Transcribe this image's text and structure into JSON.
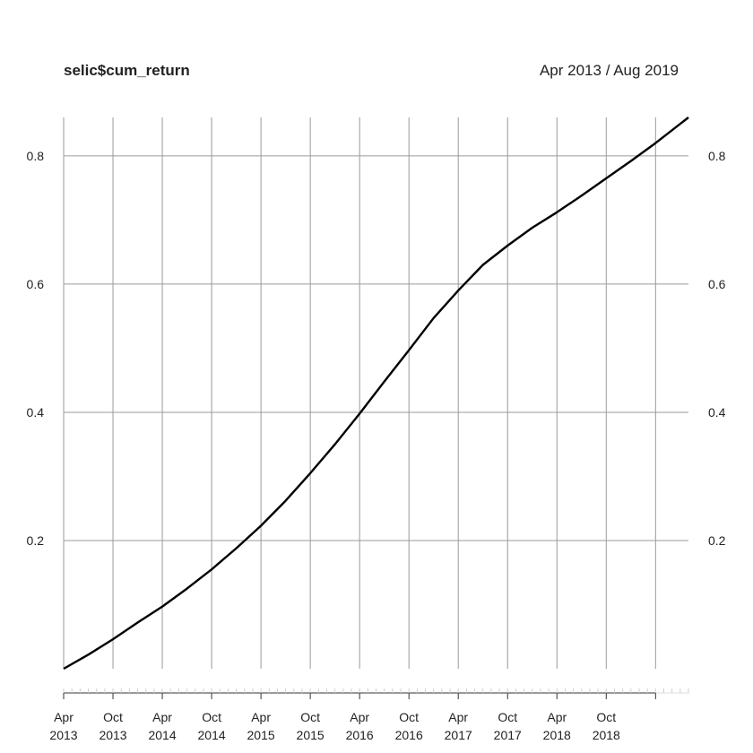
{
  "chart_data": {
    "type": "line",
    "title": "selic$cum_return",
    "date_range_label": "Apr 2013 / Aug 2019",
    "x_range": [
      "2013-04",
      "2019-08"
    ],
    "ylim": [
      0,
      0.86
    ],
    "y_ticks": [
      {
        "value": 0.2,
        "label": "0.2"
      },
      {
        "value": 0.4,
        "label": "0.4"
      },
      {
        "value": 0.6,
        "label": "0.6"
      },
      {
        "value": 0.8,
        "label": "0.8"
      }
    ],
    "x_ticks": [
      {
        "date": "2013-04",
        "month": "Apr",
        "year": "2013"
      },
      {
        "date": "2013-10",
        "month": "Oct",
        "year": "2013"
      },
      {
        "date": "2014-04",
        "month": "Apr",
        "year": "2014"
      },
      {
        "date": "2014-10",
        "month": "Oct",
        "year": "2014"
      },
      {
        "date": "2015-04",
        "month": "Apr",
        "year": "2015"
      },
      {
        "date": "2015-10",
        "month": "Oct",
        "year": "2015"
      },
      {
        "date": "2016-04",
        "month": "Apr",
        "year": "2016"
      },
      {
        "date": "2016-10",
        "month": "Oct",
        "year": "2016"
      },
      {
        "date": "2017-04",
        "month": "Apr",
        "year": "2017"
      },
      {
        "date": "2017-10",
        "month": "Oct",
        "year": "2017"
      },
      {
        "date": "2018-04",
        "month": "Apr",
        "year": "2018"
      },
      {
        "date": "2018-10",
        "month": "Oct",
        "year": "2018"
      }
    ],
    "grid": true,
    "series": [
      {
        "color": "#000000",
        "points": [
          {
            "x": "2013-04",
            "y": 0.0
          },
          {
            "x": "2013-07",
            "y": 0.022
          },
          {
            "x": "2013-10",
            "y": 0.046
          },
          {
            "x": "2014-01",
            "y": 0.072
          },
          {
            "x": "2014-04",
            "y": 0.097
          },
          {
            "x": "2014-07",
            "y": 0.125
          },
          {
            "x": "2014-10",
            "y": 0.155
          },
          {
            "x": "2015-01",
            "y": 0.188
          },
          {
            "x": "2015-04",
            "y": 0.223
          },
          {
            "x": "2015-07",
            "y": 0.262
          },
          {
            "x": "2015-10",
            "y": 0.305
          },
          {
            "x": "2016-01",
            "y": 0.35
          },
          {
            "x": "2016-04",
            "y": 0.398
          },
          {
            "x": "2016-07",
            "y": 0.448
          },
          {
            "x": "2016-10",
            "y": 0.497
          },
          {
            "x": "2017-01",
            "y": 0.547
          },
          {
            "x": "2017-04",
            "y": 0.59
          },
          {
            "x": "2017-07",
            "y": 0.63
          },
          {
            "x": "2017-10",
            "y": 0.66
          },
          {
            "x": "2018-01",
            "y": 0.688
          },
          {
            "x": "2018-04",
            "y": 0.712
          },
          {
            "x": "2018-07",
            "y": 0.738
          },
          {
            "x": "2018-10",
            "y": 0.765
          },
          {
            "x": "2019-01",
            "y": 0.792
          },
          {
            "x": "2019-04",
            "y": 0.82
          },
          {
            "x": "2019-08",
            "y": 0.86
          }
        ]
      }
    ]
  }
}
